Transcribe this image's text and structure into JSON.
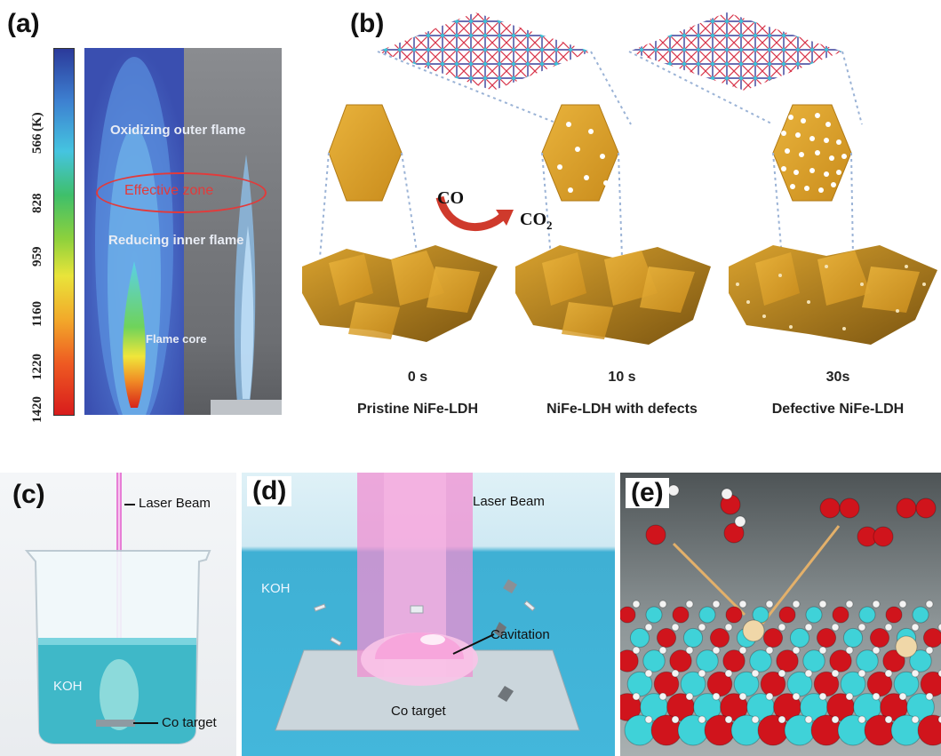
{
  "panel_a": {
    "label": "(a)",
    "unit": "(K)",
    "scale": [
      "566",
      "828",
      "959",
      "1160",
      "1220",
      "1420"
    ],
    "outer_flame": "Oxidizing outer flame",
    "effective_zone": "Effective zone",
    "inner_flame": "Reducing inner flame",
    "core": "Flame core"
  },
  "panel_b": {
    "label": "(b)",
    "co": "CO",
    "co2": "CO",
    "co2_sub": "2",
    "stages": [
      {
        "time": "0 s",
        "name": "Pristine NiFe-LDH"
      },
      {
        "time": "10 s",
        "name": "NiFe-LDH with defects"
      },
      {
        "time": "30s",
        "name": "Defective NiFe-LDH"
      }
    ]
  },
  "panel_c": {
    "label": "(c)",
    "laser": "Laser Beam",
    "koh": "KOH",
    "target": "Co target"
  },
  "panel_d": {
    "label": "(d)",
    "laser": "Laser Beam",
    "koh": "KOH",
    "cavitation": "Cavitation",
    "target": "Co target"
  },
  "panel_e": {
    "label": "(e)"
  }
}
